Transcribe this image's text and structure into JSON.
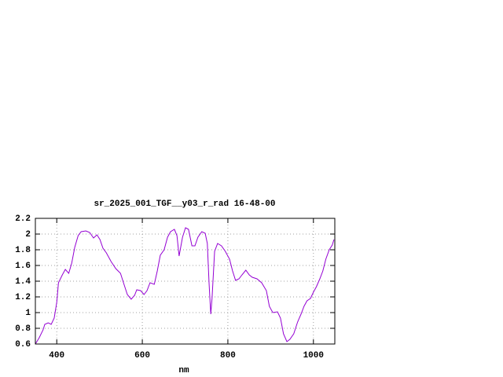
{
  "chart_data": {
    "type": "line",
    "title": "sr_2025_001_TGF__y03_r_rad 16-48-00",
    "x_label": "nm",
    "x": [
      350,
      359,
      368,
      372,
      380,
      387,
      394,
      400,
      404,
      413,
      420,
      428,
      435,
      442,
      450,
      457,
      468,
      477,
      486,
      494,
      501,
      508,
      516,
      527,
      538,
      549,
      556,
      565,
      574,
      582,
      587,
      596,
      604,
      611,
      618,
      628,
      635,
      642,
      651,
      659,
      666,
      675,
      681,
      686,
      694,
      701,
      708,
      716,
      723,
      730,
      739,
      747,
      752,
      756,
      760,
      763,
      769,
      776,
      785,
      794,
      804,
      811,
      818,
      826,
      833,
      842,
      850,
      857,
      868,
      879,
      890,
      897,
      905,
      916,
      923,
      930,
      938,
      945,
      954,
      963,
      971,
      978,
      985,
      993,
      1000,
      1007,
      1015,
      1022,
      1029,
      1037,
      1044,
      1048
    ],
    "values": [
      0.6,
      0.68,
      0.78,
      0.85,
      0.87,
      0.85,
      0.93,
      1.13,
      1.38,
      1.48,
      1.55,
      1.5,
      1.63,
      1.83,
      1.98,
      2.03,
      2.04,
      2.02,
      1.95,
      1.99,
      1.93,
      1.82,
      1.76,
      1.65,
      1.56,
      1.5,
      1.38,
      1.23,
      1.17,
      1.22,
      1.29,
      1.28,
      1.23,
      1.28,
      1.38,
      1.36,
      1.53,
      1.73,
      1.8,
      1.96,
      2.03,
      2.06,
      1.98,
      1.72,
      1.96,
      2.08,
      2.06,
      1.85,
      1.85,
      1.96,
      2.03,
      2.01,
      1.88,
      1.38,
      0.98,
      1.18,
      1.78,
      1.88,
      1.85,
      1.78,
      1.68,
      1.53,
      1.41,
      1.43,
      1.48,
      1.54,
      1.48,
      1.45,
      1.43,
      1.38,
      1.28,
      1.08,
      1.0,
      1.01,
      0.93,
      0.73,
      0.63,
      0.66,
      0.73,
      0.88,
      0.98,
      1.08,
      1.15,
      1.18,
      1.26,
      1.33,
      1.43,
      1.53,
      1.68,
      1.8,
      1.86,
      1.93
    ],
    "color": "#9400d3",
    "xlim": [
      350,
      1050
    ],
    "xticks": [
      400,
      600,
      800,
      1000
    ],
    "ylim": [
      0.6,
      2.2
    ],
    "yticks": [
      0.6,
      0.8,
      1,
      1.2,
      1.4,
      1.6,
      1.8,
      2,
      2.2
    ],
    "grid": true
  }
}
